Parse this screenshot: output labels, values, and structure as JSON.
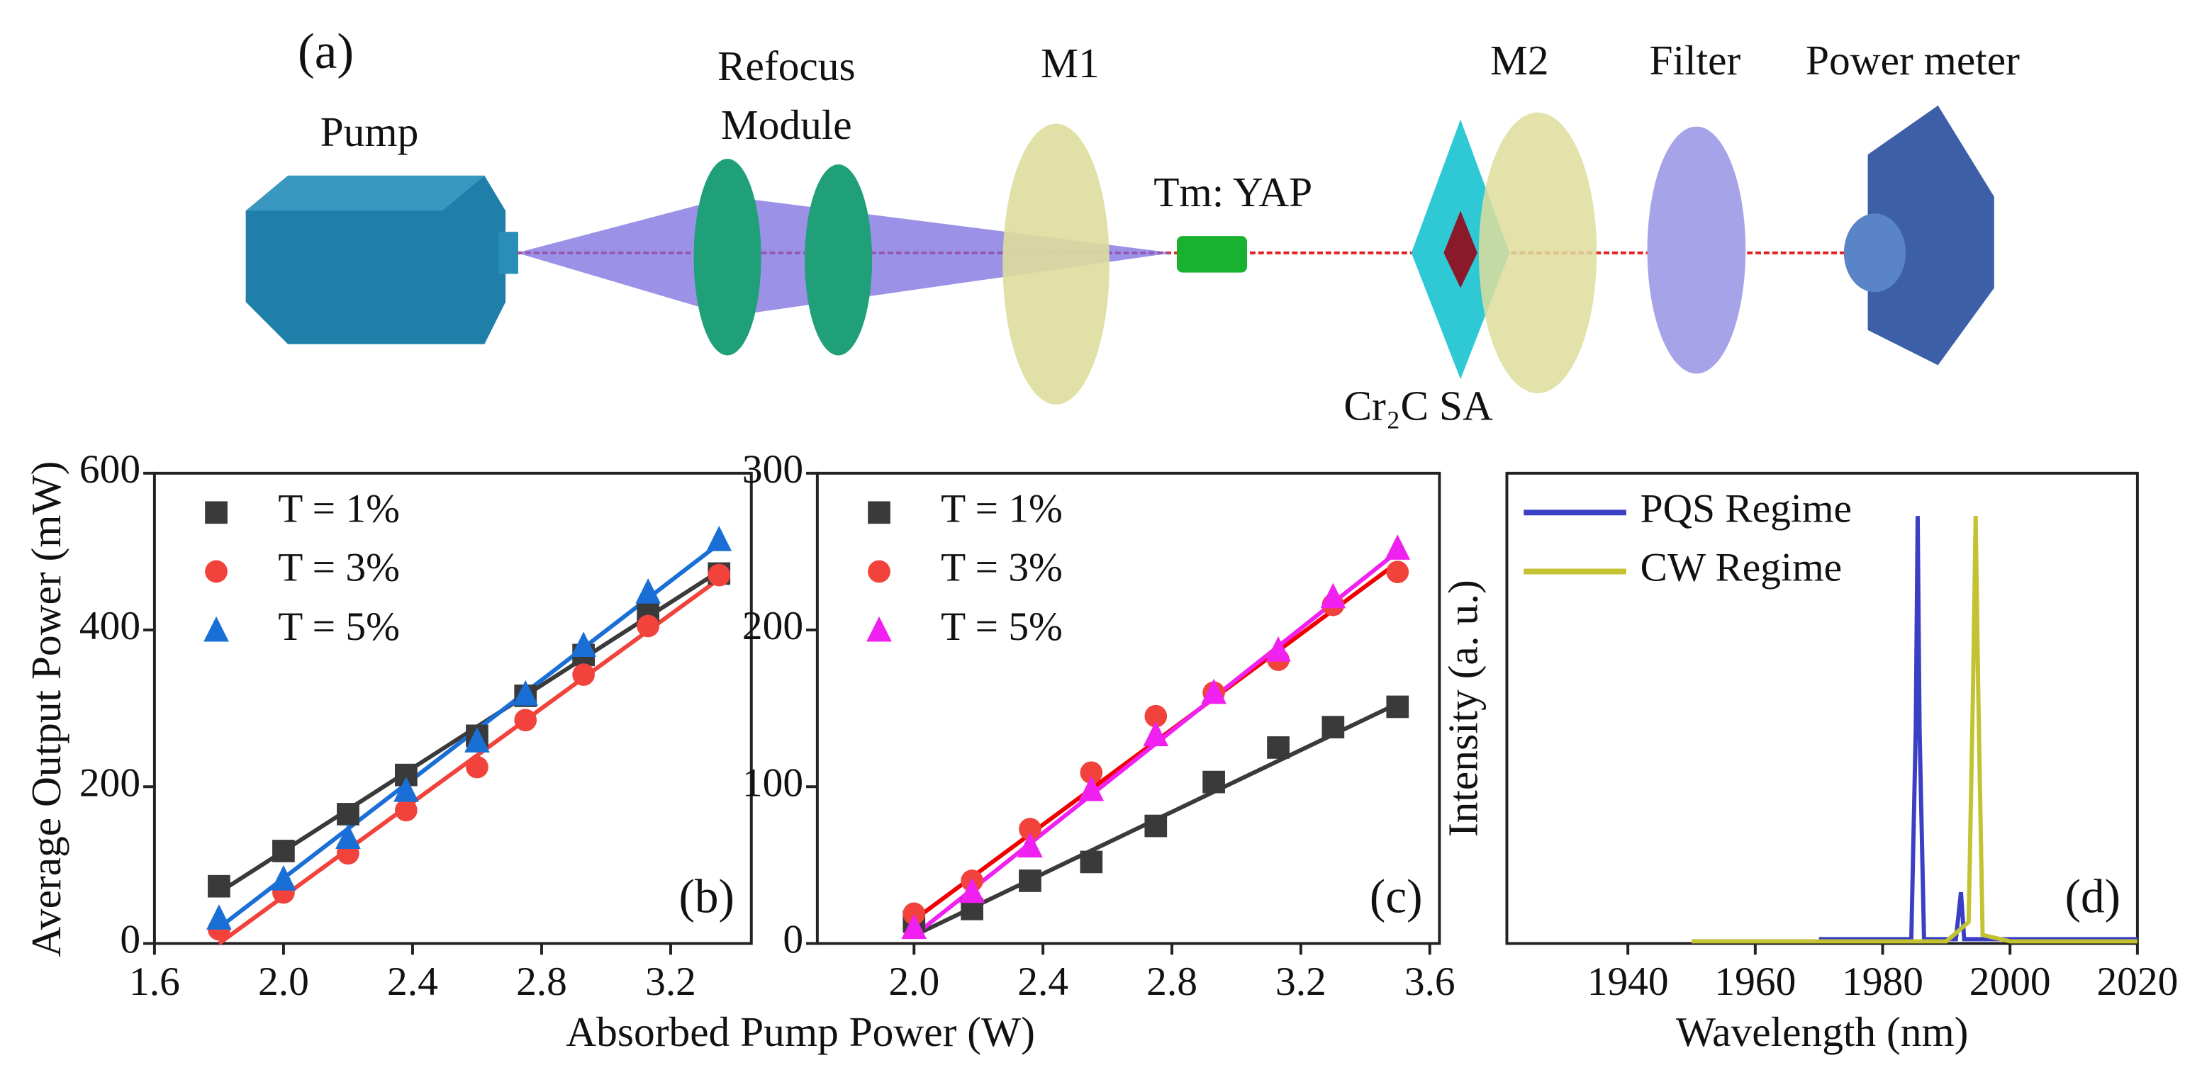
{
  "diagram": {
    "panel_label": "(a)",
    "pump": "Pump",
    "refocus": [
      "Refocus",
      "Module"
    ],
    "m1": "M1",
    "crystal": "Tm: YAP",
    "m2": "M2",
    "filter": "Filter",
    "meter": "Power meter",
    "sa": "Cr₂C SA"
  },
  "axis_labels": {
    "x": "Absorbed Pump Power (W)",
    "y": "Average Output Power (mW)"
  },
  "chart_data": [
    {
      "type": "scatter",
      "panel_label": "(b)",
      "xlim": [
        1.6,
        3.45
      ],
      "ylim": [
        0,
        600
      ],
      "xticks": [
        1.6,
        {
          "value": 2,
          "label": "2.0"
        },
        2.4,
        2.8,
        3.2
      ],
      "yticks": [
        0,
        200,
        400,
        600
      ],
      "series": [
        {
          "name": "T = 1%",
          "color": "#3a3a3a",
          "marker": "square",
          "x": [
            1.8,
            2.0,
            2.2,
            2.38,
            2.6,
            2.75,
            2.93,
            3.13,
            3.35
          ],
          "values": [
            73,
            118,
            165,
            215,
            265,
            316,
            368,
            420,
            472
          ]
        },
        {
          "name": "T = 3%",
          "color": "#f2423c",
          "marker": "circle",
          "x": [
            1.8,
            2.0,
            2.2,
            2.38,
            2.6,
            2.75,
            2.93,
            3.13,
            3.35
          ],
          "values": [
            18,
            65,
            115,
            170,
            225,
            285,
            343,
            405,
            470
          ]
        },
        {
          "name": "T = 5%",
          "color": "#1a6fd6",
          "marker": "triangle",
          "x": [
            1.8,
            2.0,
            2.2,
            2.38,
            2.6,
            2.75,
            2.93,
            3.13,
            3.35
          ],
          "values": [
            32,
            82,
            135,
            195,
            258,
            318,
            380,
            448,
            515
          ]
        }
      ],
      "fits": [
        {
          "color": "#3a3a3a",
          "x": [
            1.8,
            3.35
          ],
          "values": [
            65,
            475
          ]
        },
        {
          "color": "#f2423c",
          "x": [
            1.8,
            3.35
          ],
          "values": [
            0,
            465
          ]
        },
        {
          "color": "#1a6fd6",
          "x": [
            1.8,
            3.35
          ],
          "values": [
            20,
            510
          ]
        }
      ]
    },
    {
      "type": "scatter",
      "panel_label": "(c)",
      "xlim": [
        1.7,
        3.63
      ],
      "ylim": [
        0,
        300
      ],
      "xticks": [
        {
          "value": 2,
          "label": "2.0"
        },
        2.4,
        2.8,
        3.2,
        3.6
      ],
      "yticks": [
        0,
        100,
        200,
        300
      ],
      "series": [
        {
          "name": "T = 1%",
          "color": "#3a3a3a",
          "marker": "square",
          "x": [
            2.0,
            2.18,
            2.36,
            2.55,
            2.75,
            2.93,
            3.13,
            3.3,
            3.5
          ],
          "values": [
            14,
            22,
            40,
            52,
            75,
            103,
            125,
            138,
            151
          ]
        },
        {
          "name": "T = 3%",
          "color": "#f2423c",
          "marker": "circle",
          "x": [
            2.0,
            2.18,
            2.36,
            2.55,
            2.75,
            2.93,
            3.13,
            3.3,
            3.5
          ],
          "values": [
            19,
            40,
            73,
            109,
            145,
            160,
            181,
            216,
            237
          ]
        },
        {
          "name": "T = 5%",
          "color": "#f020f0",
          "marker": "triangle",
          "x": [
            2.0,
            2.18,
            2.36,
            2.55,
            2.75,
            2.93,
            3.13,
            3.3,
            3.5
          ],
          "values": [
            10,
            33,
            62,
            98,
            133,
            160,
            187,
            221,
            252
          ]
        }
      ],
      "fits": [
        {
          "color": "#3a3a3a",
          "x": [
            2.0,
            3.5
          ],
          "values": [
            5,
            153
          ]
        },
        {
          "color": "#f00000",
          "x": [
            2.0,
            3.5
          ],
          "values": [
            15,
            243
          ]
        },
        {
          "color": "#f020f0",
          "x": [
            2.0,
            3.5
          ],
          "values": [
            5,
            250
          ]
        }
      ]
    },
    {
      "type": "line",
      "panel_label": "(d)",
      "xlabel": "Wavelength (nm)",
      "ylabel": "Intensity (a. u.)",
      "xlim": [
        1921,
        2020
      ],
      "ylim": [
        0,
        1.1
      ],
      "xticks": [
        1940,
        1960,
        1980,
        2000,
        2020
      ],
      "series": [
        {
          "name": "PQS Regime",
          "color": "#3b3fc4",
          "x": [
            1970,
            1980,
            1984.5,
            1985.2,
            1985.5,
            1985.8,
            1986.5,
            1991.5,
            1992.3,
            1992.8,
            1993.5,
            2000,
            2020
          ],
          "values": [
            0.01,
            0.01,
            0.01,
            0.5,
            1.0,
            0.5,
            0.01,
            0.01,
            0.12,
            0.01,
            0.01,
            0.01,
            0.01
          ]
        },
        {
          "name": "CW Regime",
          "color": "#c2c232",
          "x": [
            1950,
            1990,
            1993.5,
            1994.2,
            1994.6,
            1995,
            1995.7,
            2000,
            2020
          ],
          "values": [
            0.005,
            0.005,
            0.05,
            0.6,
            1.0,
            0.6,
            0.02,
            0.005,
            0.005
          ]
        }
      ]
    }
  ]
}
